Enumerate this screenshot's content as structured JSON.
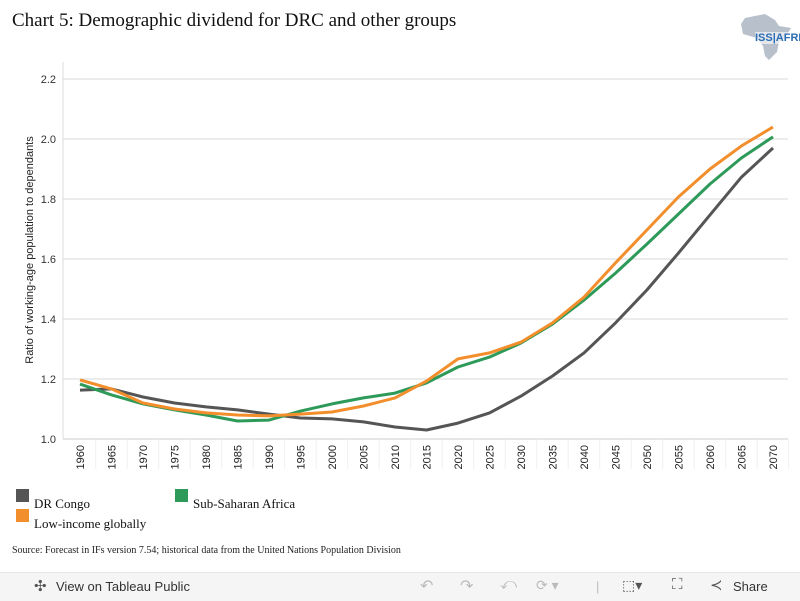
{
  "title": "Chart 5: Demographic dividend for DRC and other groups",
  "logo": {
    "text": "ISS|AFRICA"
  },
  "source": "Source: Forecast in IFs version 7.54; historical data from the United Nations Population Division",
  "toolbar": {
    "view_label": "View on Tableau Public",
    "share_label": "Share",
    "icons": [
      "tableau-icon",
      "undo-icon",
      "redo-icon",
      "revert-icon",
      "refresh-icon",
      "download-icon",
      "fullscreen-icon",
      "share-icon"
    ]
  },
  "chart_data": {
    "type": "line",
    "title": "Chart 5: Demographic dividend for DRC and other groups",
    "xlabel": "",
    "ylabel": "Ratio of working-age population to dependants",
    "ylim": [
      1.0,
      2.2
    ],
    "yticks": [
      "1.0",
      "1.2",
      "1.4",
      "1.6",
      "1.8",
      "2.0",
      "2.2"
    ],
    "grid": true,
    "legend": "bottom",
    "x": [
      "1960",
      "1965",
      "1970",
      "1975",
      "1980",
      "1985",
      "1990",
      "1995",
      "2000",
      "2005",
      "2010",
      "2015",
      "2020",
      "2025",
      "2030",
      "2035",
      "2040",
      "2045",
      "2050",
      "2055",
      "2060",
      "2065",
      "2070"
    ],
    "series": [
      {
        "name": "DR Congo",
        "color": "#555555",
        "values": [
          1.163,
          1.167,
          1.14,
          1.12,
          1.107,
          1.097,
          1.083,
          1.07,
          1.067,
          1.057,
          1.04,
          1.03,
          1.053,
          1.087,
          1.143,
          1.21,
          1.287,
          1.387,
          1.497,
          1.62,
          1.747,
          1.873,
          1.97
        ]
      },
      {
        "name": "Sub-Saharan Africa",
        "color": "#2e9a5a",
        "values": [
          1.183,
          1.147,
          1.117,
          1.097,
          1.08,
          1.06,
          1.063,
          1.093,
          1.117,
          1.137,
          1.153,
          1.187,
          1.24,
          1.273,
          1.32,
          1.383,
          1.463,
          1.553,
          1.65,
          1.75,
          1.85,
          1.937,
          2.007
        ]
      },
      {
        "name": "Low-income globally",
        "color": "#f28e2b",
        "values": [
          1.197,
          1.167,
          1.12,
          1.1,
          1.087,
          1.08,
          1.077,
          1.083,
          1.09,
          1.11,
          1.137,
          1.193,
          1.267,
          1.287,
          1.323,
          1.387,
          1.473,
          1.587,
          1.697,
          1.807,
          1.9,
          1.977,
          2.04
        ]
      }
    ]
  }
}
